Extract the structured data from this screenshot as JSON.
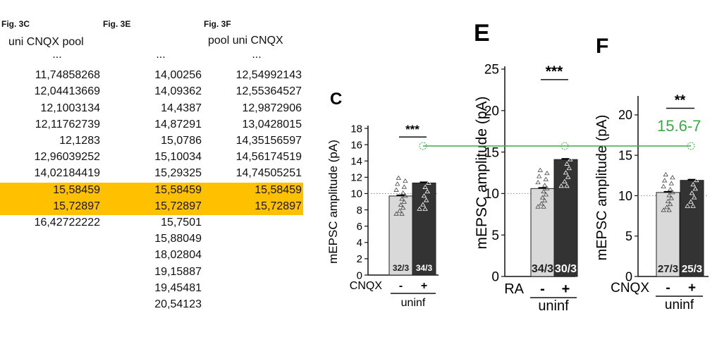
{
  "columns": [
    {
      "header": "Fig. 3C",
      "subheader": "uni CNQX pool",
      "values": [
        "...",
        "11,74858268",
        "12,04413669",
        "12,1003134",
        "12,11762739",
        "12,1283",
        "12,96039252",
        "14,02184419",
        "15,58459",
        "15,72897",
        "16,42722222"
      ]
    },
    {
      "header": "Fig. 3E",
      "subheader": "",
      "values": [
        "...",
        "14,00256",
        "14,09362",
        "14,4387",
        "14,87291",
        "15,0786",
        "15,10034",
        "15,29325",
        "15,58459",
        "15,72897",
        "15,7501",
        "15,88049",
        "18,02804",
        "19,15887",
        "19,45481",
        "20,54123"
      ]
    },
    {
      "header": "Fig. 3F",
      "subheader": "pool uni CNQX",
      "values": [
        "...",
        "12,54992143",
        "12,55364527",
        "12,9872906",
        "13,0428015",
        "14,35156597",
        "14,56174519",
        "14,74505251",
        "15,58459",
        "15,72897"
      ]
    }
  ],
  "highlight_color": "#ffc000",
  "annotation": {
    "text": "15.6-7",
    "color": "#3aab47"
  },
  "chart_data": [
    {
      "panel": "C",
      "type": "bar",
      "ylabel": "mEPSC amplitude (pA)",
      "ylim": [
        0,
        18
      ],
      "yticks": [
        "0",
        "2",
        "4",
        "6",
        "8",
        "10",
        "12",
        "14",
        "16",
        "18"
      ],
      "group_label": "CNQX",
      "categories": [
        "-",
        "+"
      ],
      "bracket_label": "uninf",
      "values": [
        9.7,
        11.3
      ],
      "n_labels": [
        "32/3",
        "34/3"
      ],
      "significance": "***",
      "bar_colors": [
        "#d9d9d9",
        "#333333"
      ]
    },
    {
      "panel": "E",
      "type": "bar",
      "ylabel": "mEPSC amplitude (pA)",
      "ylim": [
        0,
        25
      ],
      "yticks": [
        "0",
        "5",
        "10",
        "15",
        "20",
        "25"
      ],
      "group_label": "RA",
      "categories": [
        "-",
        "+"
      ],
      "bracket_label": "uninf",
      "values": [
        10.6,
        14.1
      ],
      "n_labels": [
        "34/3",
        "30/3"
      ],
      "significance": "***",
      "bar_colors": [
        "#d9d9d9",
        "#333333"
      ]
    },
    {
      "panel": "F",
      "type": "bar",
      "ylabel": "mEPSC amplitude (pA)",
      "ylim": [
        0,
        22
      ],
      "yticks": [
        "0",
        "5",
        "10",
        "15",
        "20"
      ],
      "group_label": "CNQX",
      "categories": [
        "-",
        "+"
      ],
      "bracket_label": "uninf",
      "values": [
        10.4,
        11.9
      ],
      "n_labels": [
        "27/3",
        "25/3"
      ],
      "significance": "**",
      "bar_colors": [
        "#d9d9d9",
        "#333333"
      ]
    }
  ]
}
